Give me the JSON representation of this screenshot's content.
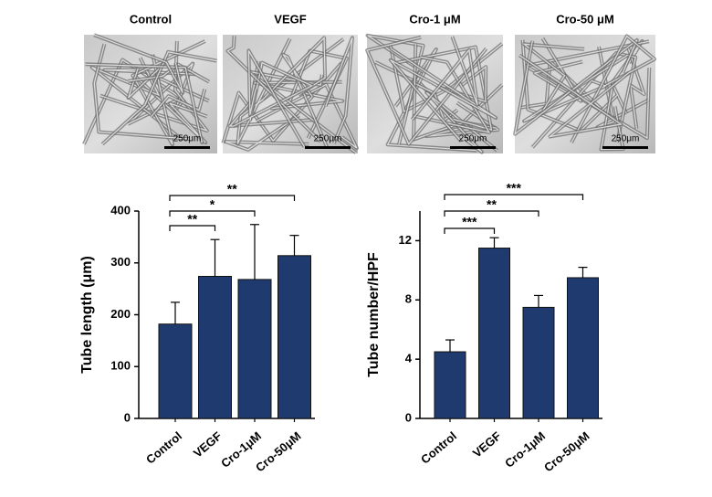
{
  "panels": [
    {
      "label": "Control",
      "scale": "250μm"
    },
    {
      "label": "VEGF",
      "scale": "250μm"
    },
    {
      "label": "Cro-1 μM",
      "scale": "250μm"
    },
    {
      "label": "Cro-50 μM",
      "scale": "250μm"
    }
  ],
  "chart_data": [
    {
      "type": "bar",
      "y_label": "Tube length (μm)",
      "categories": [
        "Control",
        "VEGF",
        "Cro-1μM",
        "Cro-50μM"
      ],
      "values": [
        182,
        274,
        268,
        314
      ],
      "errors": [
        42,
        71,
        106,
        39
      ],
      "color": "#1f3a6e",
      "ylim": [
        0,
        400
      ],
      "yticks": [
        0,
        100,
        200,
        300,
        400
      ],
      "annotations": [
        "**",
        "*",
        "**"
      ]
    },
    {
      "type": "bar",
      "y_label": "Tube number/HPF",
      "categories": [
        "Control",
        "VEGF",
        "Cro-1μM",
        "Cro-50μM"
      ],
      "values": [
        4.5,
        11.5,
        7.5,
        9.5
      ],
      "errors": [
        0.8,
        0.7,
        0.8,
        0.7
      ],
      "color": "#1f3a6e",
      "ylim": [
        0,
        14
      ],
      "yticks": [
        0,
        4,
        8,
        12
      ],
      "annotations": [
        "***",
        "**",
        "***"
      ]
    }
  ]
}
